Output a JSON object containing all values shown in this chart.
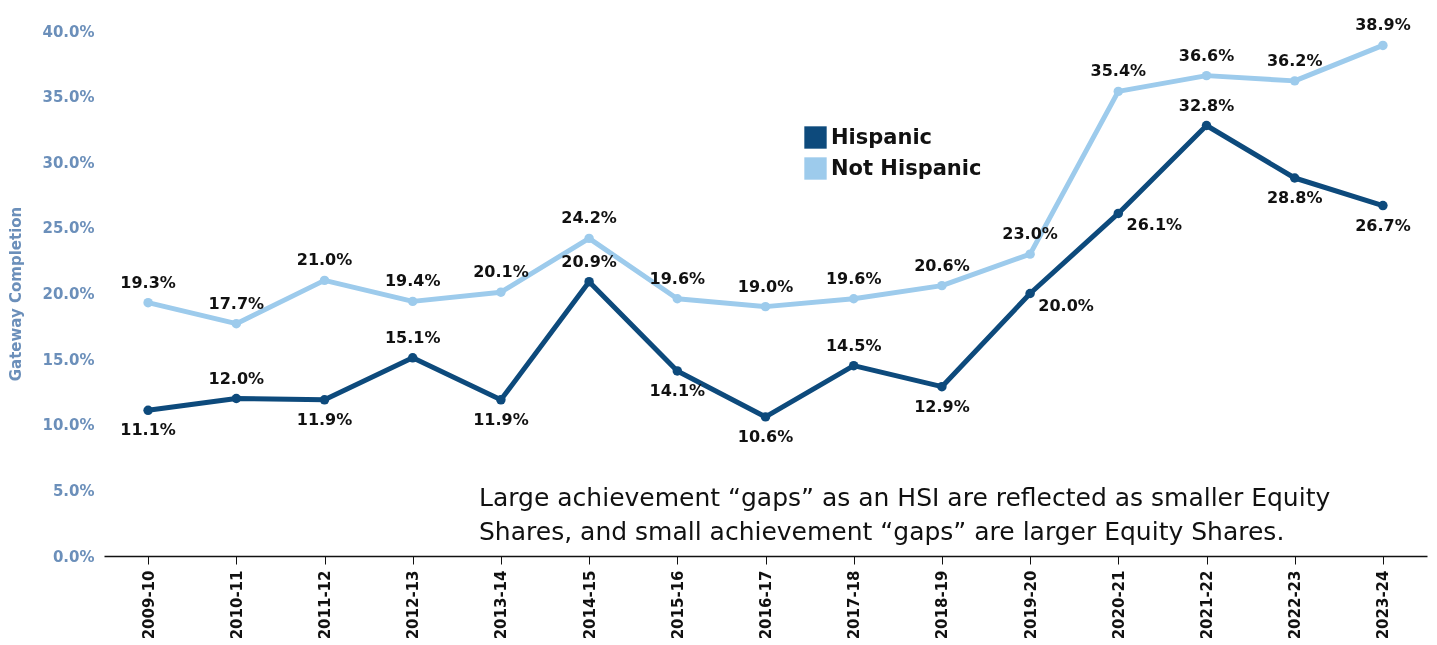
{
  "chart_data": {
    "type": "line",
    "ylabel": "Gateway Completion",
    "categories": [
      "2009-10",
      "2010-11",
      "2011-12",
      "2012-13",
      "2013-14",
      "2014-15",
      "2015-16",
      "2016-17",
      "2017-18",
      "2018-19",
      "2019-20",
      "2020-21",
      "2021-22",
      "2022-23",
      "2023-24"
    ],
    "series": [
      {
        "name": "Hispanic",
        "color": "#0d4a7c",
        "values": [
          11.1,
          12.0,
          11.9,
          15.1,
          11.9,
          20.9,
          14.1,
          10.6,
          14.5,
          12.9,
          20.0,
          26.1,
          32.8,
          28.8,
          26.7
        ],
        "value_labels": [
          "11.1%",
          "12.0%",
          "11.9%",
          "15.1%",
          "11.9%",
          "20.9%",
          "14.1%",
          "10.6%",
          "14.5%",
          "12.9%",
          "20.0%",
          "26.1%",
          "32.8%",
          "28.8%",
          "26.7%"
        ]
      },
      {
        "name": "Not Hispanic",
        "color": "#9dcbec",
        "values": [
          19.3,
          17.7,
          21.0,
          19.4,
          20.1,
          24.2,
          19.6,
          19.0,
          19.6,
          20.6,
          23.0,
          35.4,
          36.6,
          36.2,
          38.9
        ],
        "value_labels": [
          "19.3%",
          "17.7%",
          "21.0%",
          "19.4%",
          "20.1%",
          "24.2%",
          "19.6%",
          "19.0%",
          "19.6%",
          "20.6%",
          "23.0%",
          "35.4%",
          "36.6%",
          "36.2%",
          "38.9%"
        ]
      }
    ],
    "ylim": [
      0,
      40
    ],
    "yticks": [
      {
        "value": 0,
        "label": "0.0%"
      },
      {
        "value": 5,
        "label": "5.0%"
      },
      {
        "value": 10,
        "label": "10.0%"
      },
      {
        "value": 15,
        "label": "15.0%"
      },
      {
        "value": 20,
        "label": "20.0%"
      },
      {
        "value": 25,
        "label": "25.0%"
      },
      {
        "value": 30,
        "label": "30.0%"
      },
      {
        "value": 35,
        "label": "35.0%"
      },
      {
        "value": 40,
        "label": "40.0%"
      }
    ],
    "grid": false,
    "legend": "top",
    "marker": "circle",
    "line_style": "solid",
    "annotations": [
      "Large achievement “gaps” as an HSI are reflected as smaller Equity Shares, and small achievement “gaps” are larger Equity Shares."
    ]
  }
}
